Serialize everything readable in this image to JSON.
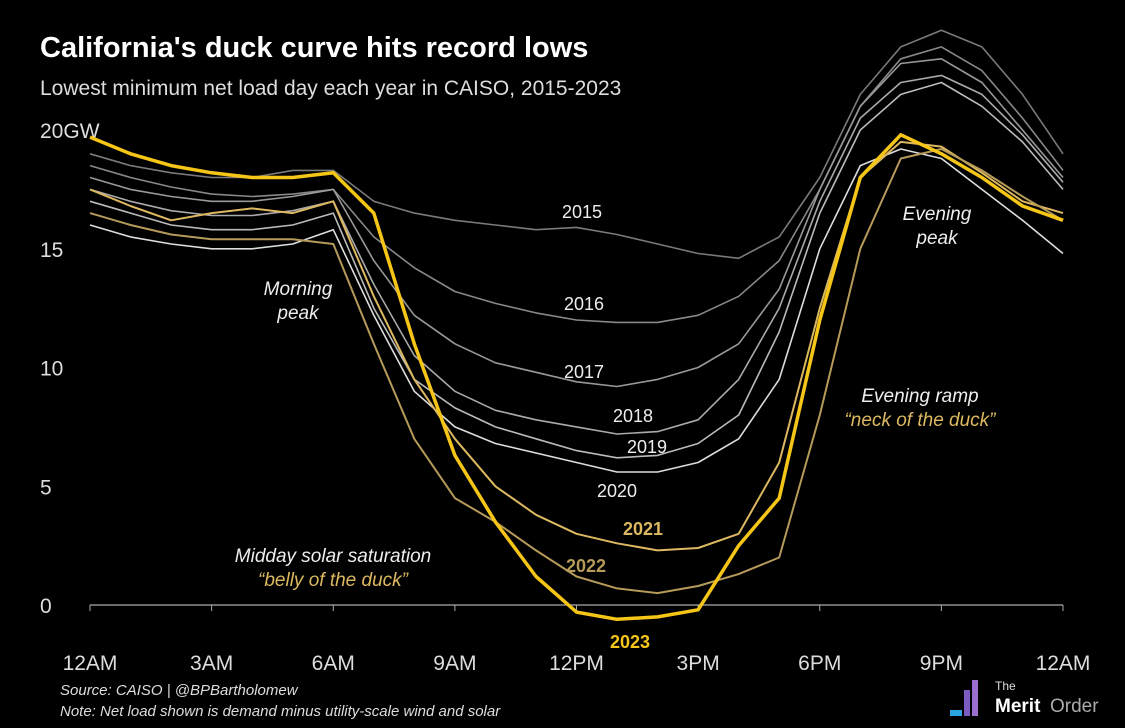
{
  "chart_data": {
    "type": "line",
    "title": "California's duck curve hits record lows",
    "subtitle": "Lowest minimum net load day each year in CAISO, 2015-2023",
    "x": [
      0,
      1,
      2,
      3,
      4,
      5,
      6,
      7,
      8,
      9,
      10,
      11,
      12,
      13,
      14,
      15,
      16,
      17,
      18,
      19,
      20,
      21,
      22,
      23,
      24
    ],
    "xlim": [
      0,
      24
    ],
    "xticks": [
      {
        "value": 0,
        "label": "12AM"
      },
      {
        "value": 3,
        "label": "3AM"
      },
      {
        "value": 6,
        "label": "6AM"
      },
      {
        "value": 9,
        "label": "9AM"
      },
      {
        "value": 12,
        "label": "12PM"
      },
      {
        "value": 15,
        "label": "3PM"
      },
      {
        "value": 18,
        "label": "6PM"
      },
      {
        "value": 21,
        "label": "9PM"
      },
      {
        "value": 24,
        "label": "12AM"
      }
    ],
    "ylim": [
      -2,
      25
    ],
    "yticks": [
      0,
      5,
      10,
      15,
      {
        "value": 20,
        "label": "20GW"
      }
    ],
    "series": [
      {
        "name": "2015",
        "color": "#7a7a7a",
        "values": [
          19.0,
          18.5,
          18.2,
          18.0,
          18.0,
          18.3,
          18.3,
          17.0,
          16.5,
          16.2,
          16.0,
          15.8,
          15.9,
          15.6,
          15.2,
          14.8,
          14.6,
          15.5,
          18.0,
          21.5,
          23.5,
          24.2,
          23.5,
          21.5,
          19.0
        ]
      },
      {
        "name": "2016",
        "color": "#888888",
        "values": [
          18.5,
          18.0,
          17.6,
          17.3,
          17.2,
          17.3,
          17.5,
          15.5,
          14.2,
          13.2,
          12.7,
          12.3,
          12.0,
          11.9,
          11.9,
          12.2,
          13.0,
          14.5,
          17.5,
          21.0,
          23.0,
          23.5,
          22.5,
          20.5,
          18.3
        ]
      },
      {
        "name": "2017",
        "color": "#999999",
        "values": [
          18.0,
          17.5,
          17.2,
          17.0,
          17.0,
          17.2,
          17.5,
          14.5,
          12.2,
          11.0,
          10.2,
          9.8,
          9.4,
          9.2,
          9.5,
          10.0,
          11.0,
          13.3,
          17.5,
          21.0,
          22.8,
          23.0,
          22.0,
          20.0,
          18.0
        ]
      },
      {
        "name": "2018",
        "color": "#aaaaaa",
        "values": [
          17.5,
          17.0,
          16.6,
          16.4,
          16.4,
          16.6,
          17.0,
          13.5,
          10.5,
          9.0,
          8.2,
          7.8,
          7.5,
          7.2,
          7.3,
          7.8,
          9.5,
          12.5,
          17.0,
          20.5,
          22.0,
          22.3,
          21.5,
          19.8,
          17.8
        ]
      },
      {
        "name": "2019",
        "color": "#bbbbbb",
        "values": [
          17.0,
          16.5,
          16.0,
          15.8,
          15.8,
          16.0,
          16.5,
          12.5,
          9.5,
          8.3,
          7.5,
          7.0,
          6.5,
          6.2,
          6.3,
          6.8,
          8.0,
          11.5,
          16.5,
          20.0,
          21.5,
          22.0,
          21.0,
          19.5,
          17.5
        ]
      },
      {
        "name": "2020",
        "color": "#dddddd",
        "values": [
          16.0,
          15.5,
          15.2,
          15.0,
          15.0,
          15.2,
          15.8,
          12.2,
          9.0,
          7.5,
          6.8,
          6.4,
          6.0,
          5.6,
          5.6,
          6.0,
          7.0,
          9.5,
          15.0,
          18.5,
          19.2,
          18.8,
          17.5,
          16.2,
          14.8
        ]
      },
      {
        "name": "2021",
        "color": "#dcb860",
        "values": [
          17.5,
          16.8,
          16.2,
          16.5,
          16.7,
          16.5,
          17.0,
          13.0,
          9.5,
          7.0,
          5.0,
          3.8,
          3.0,
          2.6,
          2.3,
          2.4,
          3.0,
          6.0,
          12.5,
          18.0,
          19.5,
          19.3,
          18.2,
          17.0,
          16.5
        ]
      },
      {
        "name": "2022",
        "color": "#b59a5a",
        "values": [
          16.5,
          16.0,
          15.6,
          15.4,
          15.4,
          15.4,
          15.2,
          11.0,
          7.0,
          4.5,
          3.5,
          2.3,
          1.2,
          0.7,
          0.5,
          0.8,
          1.3,
          2.0,
          8.0,
          15.0,
          18.8,
          19.2,
          18.3,
          17.2,
          16.2
        ]
      },
      {
        "name": "2023",
        "color": "#f5c518",
        "values": [
          19.7,
          19.0,
          18.5,
          18.2,
          18.0,
          18.0,
          18.2,
          16.5,
          11.0,
          6.3,
          3.5,
          1.2,
          -0.3,
          -0.6,
          -0.5,
          -0.2,
          2.5,
          4.5,
          12.0,
          18.0,
          19.8,
          19.0,
          18.0,
          16.8,
          16.2
        ]
      }
    ],
    "annotations": [
      {
        "lines": [
          "Morning",
          "peak"
        ]
      },
      {
        "lines": [
          "Evening",
          "peak"
        ]
      },
      {
        "lines": [
          "Evening ramp",
          "“neck of the duck”"
        ]
      },
      {
        "lines": [
          "Midday solar saturation",
          "“belly of the duck”"
        ]
      }
    ],
    "source": "Source: CAISO | @BPBartholomew",
    "note": "Note: Net load shown is demand minus utility-scale wind and solar",
    "logo": [
      "The",
      "Merit",
      "Order"
    ]
  }
}
